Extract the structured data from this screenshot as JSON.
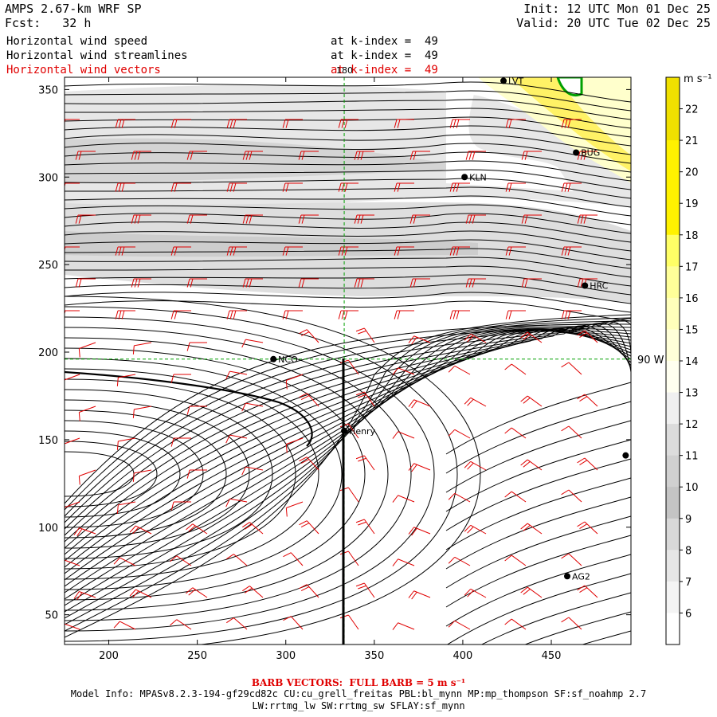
{
  "header": {
    "model": "AMPS 2.67-km WRF SP",
    "fcst_label": "Fcst:",
    "fcst_value": "32 h",
    "init": "Init: 12 UTC Mon 01 Dec 25",
    "valid": "Valid: 20 UTC Tue 02 Dec 25"
  },
  "fields": [
    {
      "name": "Horizontal wind speed",
      "level": "at k-index =  49",
      "color": "#000000"
    },
    {
      "name": "Horizontal wind streamlines",
      "level": "at k-index =  49",
      "color": "#000000"
    },
    {
      "name": "Horizontal wind vectors",
      "level": "at k-index =  49",
      "color": "#e00000"
    }
  ],
  "map": {
    "x_axis": {
      "min": 175,
      "max": 495,
      "ticks": [
        "200",
        "250",
        "300",
        "350",
        "400",
        "450"
      ],
      "tick_values": [
        200,
        250,
        300,
        350,
        400,
        450
      ]
    },
    "y_axis": {
      "min": 33,
      "max": 357,
      "ticks": [
        "50",
        "100",
        "150",
        "200",
        "250",
        "300",
        "350"
      ],
      "tick_values": [
        50,
        100,
        150,
        200,
        250,
        300,
        350
      ]
    },
    "meridian_label": "180",
    "meridian_x": 333,
    "parallel_label": "90 W",
    "parallel_y": 196,
    "stations": [
      {
        "id": "LVT",
        "x": 423,
        "y": 355
      },
      {
        "id": "BUG",
        "x": 464,
        "y": 314
      },
      {
        "id": "KLN",
        "x": 401,
        "y": 300
      },
      {
        "id": "HRC",
        "x": 469,
        "y": 238
      },
      {
        "id": "NCO",
        "x": 293,
        "y": 196
      },
      {
        "id": "Henry",
        "x": 333,
        "y": 155
      },
      {
        "id": "",
        "x": 492,
        "y": 141
      },
      {
        "id": "AG2",
        "x": 459,
        "y": 72
      }
    ]
  },
  "colorbar": {
    "unit": "m s⁻¹",
    "labels": [
      "22",
      "21",
      "20",
      "19",
      "18",
      "17",
      "16",
      "15",
      "14",
      "13",
      "12",
      "11",
      "10",
      "9",
      "8",
      "7",
      "6"
    ],
    "colors": [
      "#f0e000",
      "#f0e000",
      "#fff200",
      "#fff200",
      "#fff200",
      "#ffff66",
      "#ffff99",
      "#ffffbb",
      "#ffffd8",
      "#fffff0",
      "#f0f0f0",
      "#dcdcdc",
      "#d0d0d0",
      "#c4c4c4",
      "#d8d8d8",
      "#e6e6e6",
      "#f4f4f4",
      "#ffffff"
    ]
  },
  "footer": {
    "barb_note": "BARB VECTORS:  FULL BARB = 5 m s⁻¹",
    "model_info": "Model Info: MPASv8.2.3-194-gf29cd82c CU:cu_grell_freitas PBL:bl_mynn MP:mp_thompson SF:sf_noahmp 2.7",
    "model_info_2": "LW:rrtmg_lw SW:rrtmg_sw SFLAY:sf_mynn"
  }
}
